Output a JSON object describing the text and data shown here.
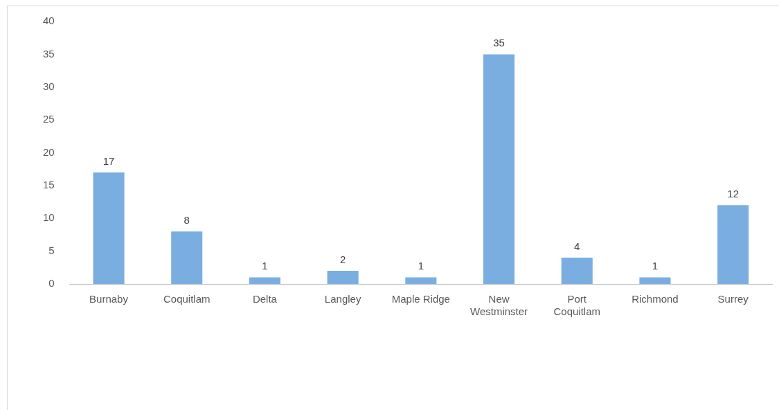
{
  "chart_data": {
    "type": "bar",
    "categories": [
      "Burnaby",
      "Coquitlam",
      "Delta",
      "Langley",
      "Maple Ridge",
      "New Westminster",
      "Port Coquitlam",
      "Richmond",
      "Surrey"
    ],
    "values": [
      17,
      8,
      1,
      2,
      1,
      35,
      4,
      1,
      12
    ],
    "color": "#7aaee0",
    "ylim": [
      0,
      40
    ],
    "yticks": [
      0,
      5,
      10,
      15,
      20,
      25,
      30,
      35,
      40
    ],
    "grid": false,
    "legend": false,
    "data_labels": true
  }
}
